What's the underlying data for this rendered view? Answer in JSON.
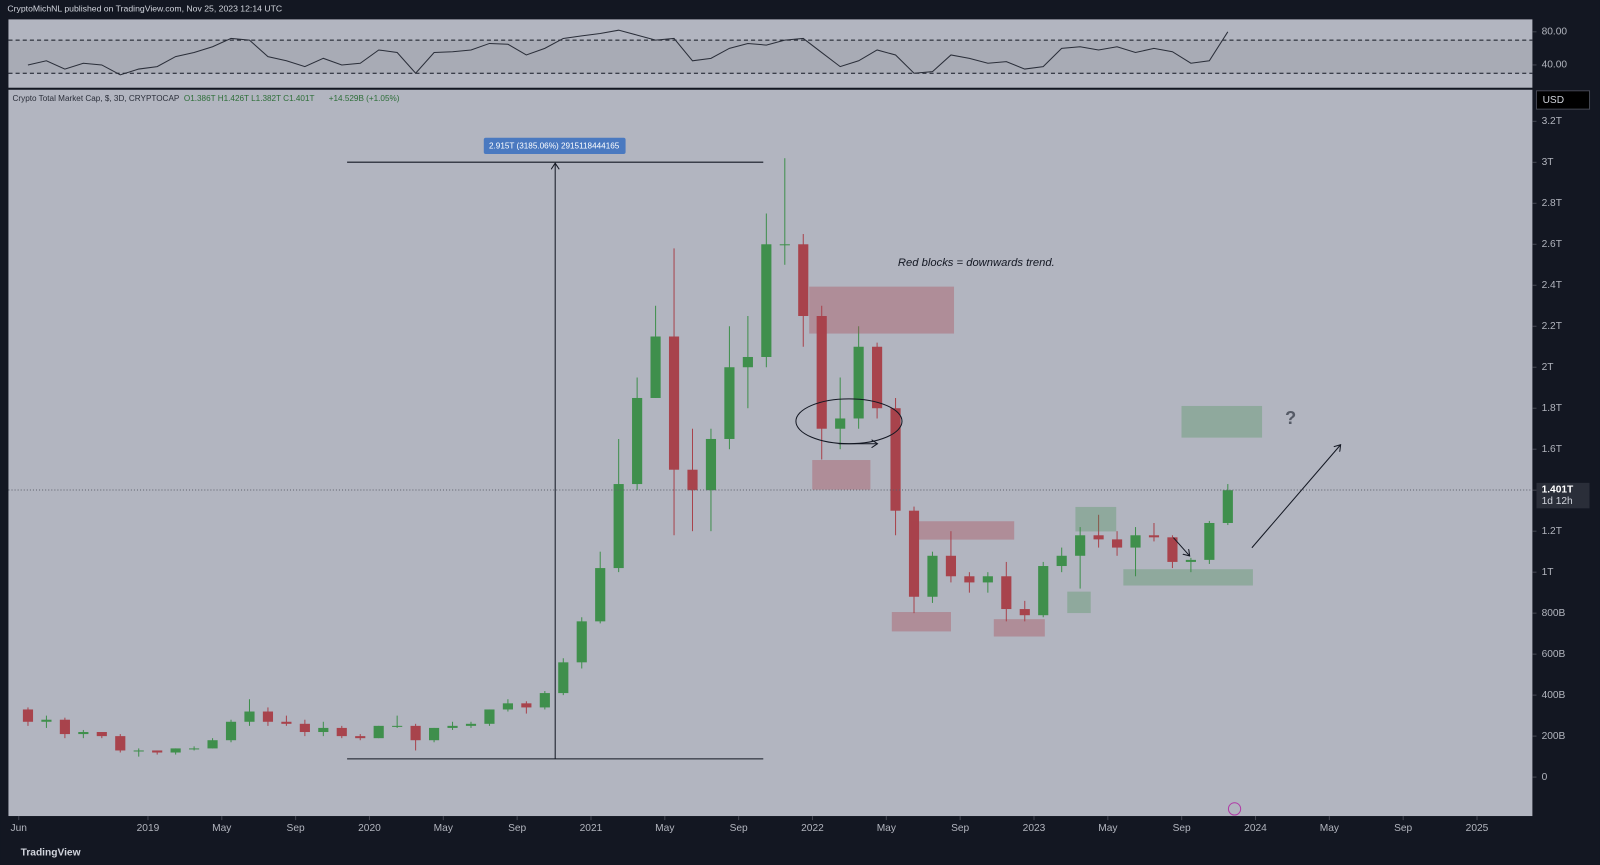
{
  "header": {
    "publisher": "CryptoMichNL published on TradingView.com, Nov 25, 2023 12:14 UTC",
    "footer": "TradingView",
    "currency": "USD",
    "measure": "2.915T (3185.06%) 2915118444165",
    "annotation": "Red blocks = downwards trend.",
    "question": "?",
    "countdown": "1d 12h"
  },
  "chart_data": [
    {
      "type": "candlestick",
      "title": "Crypto Total Market Cap, $, 3D, CRYPTOCAP",
      "legend_ohlc": "O1.386T H1.426T L1.382T C1.401T",
      "change": "+14.529B (+1.05%)",
      "up_color": "#3f8f4c",
      "down_color": "#a8434c",
      "x": [
        "2018-06",
        "2018-07",
        "2018-08",
        "2018-09",
        "2018-10",
        "2018-11",
        "2018-12",
        "2019-01",
        "2019-02",
        "2019-03",
        "2019-04",
        "2019-05",
        "2019-06",
        "2019-07",
        "2019-08",
        "2019-09",
        "2019-10",
        "2019-11",
        "2019-12",
        "2020-01",
        "2020-02",
        "2020-03",
        "2020-04",
        "2020-05",
        "2020-06",
        "2020-07",
        "2020-08",
        "2020-09",
        "2020-10",
        "2020-11",
        "2020-12",
        "2021-01",
        "2021-02",
        "2021-03",
        "2021-04",
        "2021-05",
        "2021-06",
        "2021-07",
        "2021-08",
        "2021-09",
        "2021-10",
        "2021-11",
        "2021-12",
        "2022-01",
        "2022-02",
        "2022-03",
        "2022-04",
        "2022-05",
        "2022-06",
        "2022-07",
        "2022-08",
        "2022-09",
        "2022-10",
        "2022-11",
        "2022-12",
        "2023-01",
        "2023-02",
        "2023-03",
        "2023-04",
        "2023-05",
        "2023-06",
        "2023-07",
        "2023-08",
        "2023-09",
        "2023-10",
        "2023-11"
      ],
      "open": [
        0.33,
        0.27,
        0.28,
        0.21,
        0.22,
        0.2,
        0.13,
        0.13,
        0.12,
        0.14,
        0.14,
        0.18,
        0.27,
        0.32,
        0.27,
        0.26,
        0.22,
        0.24,
        0.2,
        0.19,
        0.25,
        0.25,
        0.18,
        0.24,
        0.25,
        0.26,
        0.33,
        0.36,
        0.34,
        0.41,
        0.56,
        0.76,
        1.02,
        1.43,
        1.85,
        2.15,
        1.5,
        1.4,
        1.65,
        2.0,
        2.05,
        2.6,
        2.6,
        2.25,
        1.7,
        1.75,
        2.1,
        1.8,
        1.3,
        0.88,
        1.08,
        0.98,
        0.95,
        0.98,
        0.82,
        0.79,
        1.03,
        1.08,
        1.18,
        1.16,
        1.12,
        1.18,
        1.17,
        1.05,
        1.06,
        1.24
      ],
      "high": [
        0.34,
        0.3,
        0.29,
        0.23,
        0.22,
        0.21,
        0.14,
        0.13,
        0.14,
        0.15,
        0.19,
        0.28,
        0.38,
        0.34,
        0.3,
        0.28,
        0.27,
        0.25,
        0.21,
        0.25,
        0.3,
        0.26,
        0.24,
        0.27,
        0.27,
        0.33,
        0.38,
        0.37,
        0.42,
        0.58,
        0.78,
        1.1,
        1.65,
        1.95,
        2.3,
        2.58,
        1.7,
        1.7,
        2.2,
        2.25,
        2.75,
        3.02,
        2.65,
        2.3,
        1.95,
        2.2,
        2.12,
        1.85,
        1.32,
        1.1,
        1.2,
        1.0,
        1.0,
        1.05,
        0.86,
        1.05,
        1.12,
        1.22,
        1.28,
        1.2,
        1.22,
        1.24,
        1.18,
        1.07,
        1.25,
        1.43
      ],
      "low": [
        0.25,
        0.24,
        0.19,
        0.19,
        0.19,
        0.12,
        0.1,
        0.11,
        0.11,
        0.13,
        0.14,
        0.17,
        0.25,
        0.25,
        0.25,
        0.2,
        0.2,
        0.19,
        0.18,
        0.19,
        0.24,
        0.13,
        0.17,
        0.23,
        0.24,
        0.25,
        0.32,
        0.31,
        0.33,
        0.4,
        0.53,
        0.75,
        1.0,
        1.4,
        1.85,
        1.18,
        1.2,
        1.2,
        1.6,
        1.8,
        2.0,
        2.5,
        2.1,
        1.55,
        1.6,
        1.7,
        1.75,
        1.18,
        0.8,
        0.85,
        0.95,
        0.9,
        0.9,
        0.76,
        0.76,
        0.78,
        1.0,
        0.92,
        1.12,
        1.08,
        0.98,
        1.15,
        1.02,
        1.0,
        1.04,
        1.23
      ],
      "close": [
        0.27,
        0.28,
        0.21,
        0.22,
        0.2,
        0.13,
        0.13,
        0.12,
        0.14,
        0.14,
        0.18,
        0.27,
        0.32,
        0.27,
        0.26,
        0.22,
        0.24,
        0.2,
        0.19,
        0.25,
        0.25,
        0.18,
        0.24,
        0.25,
        0.26,
        0.33,
        0.36,
        0.34,
        0.41,
        0.56,
        0.76,
        1.02,
        1.43,
        1.85,
        2.15,
        1.5,
        1.4,
        1.65,
        2.0,
        2.05,
        2.6,
        2.6,
        2.25,
        1.7,
        1.75,
        2.1,
        1.8,
        1.3,
        0.88,
        1.08,
        0.98,
        0.95,
        0.98,
        0.82,
        0.79,
        1.03,
        1.08,
        1.18,
        1.16,
        1.12,
        1.18,
        1.17,
        1.05,
        1.06,
        1.24,
        1.4
      ],
      "last_price": {
        "value": 1.401,
        "label": "1.401T"
      },
      "xlim": [
        "2018-05",
        "2025-04"
      ],
      "xticks": [
        {
          "value": "2018-06",
          "label": "Jun"
        },
        {
          "value": "2019-01",
          "label": "2019"
        },
        {
          "value": "2019-05",
          "label": "May"
        },
        {
          "value": "2019-09",
          "label": "Sep"
        },
        {
          "value": "2020-01",
          "label": "2020"
        },
        {
          "value": "2020-05",
          "label": "May"
        },
        {
          "value": "2020-09",
          "label": "Sep"
        },
        {
          "value": "2021-01",
          "label": "2021"
        },
        {
          "value": "2021-05",
          "label": "May"
        },
        {
          "value": "2021-09",
          "label": "Sep"
        },
        {
          "value": "2022-01",
          "label": "2022"
        },
        {
          "value": "2022-05",
          "label": "May"
        },
        {
          "value": "2022-09",
          "label": "Sep"
        },
        {
          "value": "2023-01",
          "label": "2023"
        },
        {
          "value": "2023-05",
          "label": "May"
        },
        {
          "value": "2023-09",
          "label": "Sep"
        },
        {
          "value": "2024-01",
          "label": "2024"
        },
        {
          "value": "2024-05",
          "label": "May"
        },
        {
          "value": "2024-09",
          "label": "Sep"
        },
        {
          "value": "2025-01",
          "label": "2025"
        }
      ],
      "ylim": [
        -0.19,
        3.354
      ],
      "yticks": [
        0,
        {
          "value": 0.2,
          "label": "200B"
        },
        {
          "value": 0.4,
          "label": "400B"
        },
        {
          "value": 0.6,
          "label": "600B"
        },
        {
          "value": 0.8,
          "label": "800B"
        },
        {
          "value": 1,
          "label": "1T"
        },
        {
          "value": 1.2,
          "label": "1.2T"
        },
        {
          "value": 1.4,
          "label": "1.4T"
        },
        {
          "value": 1.6,
          "label": "1.6T"
        },
        {
          "value": 1.8,
          "label": "1.8T"
        },
        {
          "value": 2,
          "label": "2T"
        },
        {
          "value": 2.2,
          "label": "2.2T"
        },
        {
          "value": 2.4,
          "label": "2.4T"
        },
        {
          "value": 2.6,
          "label": "2.6T"
        },
        {
          "value": 2.8,
          "label": "2.8T"
        },
        {
          "value": 3,
          "label": "3T"
        },
        {
          "value": 3.2,
          "label": "3.2T"
        }
      ],
      "grid": false
    },
    {
      "type": "line",
      "color": "#2a2e39",
      "x": [
        "2018-06",
        "2018-07",
        "2018-08",
        "2018-09",
        "2018-10",
        "2018-11",
        "2018-12",
        "2019-01",
        "2019-02",
        "2019-03",
        "2019-04",
        "2019-05",
        "2019-06",
        "2019-07",
        "2019-08",
        "2019-09",
        "2019-10",
        "2019-11",
        "2019-12",
        "2020-01",
        "2020-02",
        "2020-03",
        "2020-04",
        "2020-05",
        "2020-06",
        "2020-07",
        "2020-08",
        "2020-09",
        "2020-10",
        "2020-11",
        "2020-12",
        "2021-01",
        "2021-02",
        "2021-03",
        "2021-04",
        "2021-05",
        "2021-06",
        "2021-07",
        "2021-08",
        "2021-09",
        "2021-10",
        "2021-11",
        "2021-12",
        "2022-01",
        "2022-02",
        "2022-03",
        "2022-04",
        "2022-05",
        "2022-06",
        "2022-07",
        "2022-08",
        "2022-09",
        "2022-10",
        "2022-11",
        "2022-12",
        "2023-01",
        "2023-02",
        "2023-03",
        "2023-04",
        "2023-05",
        "2023-06",
        "2023-07",
        "2023-08",
        "2023-09",
        "2023-10",
        "2023-11"
      ],
      "values": [
        40,
        45,
        35,
        42,
        40,
        28,
        35,
        38,
        50,
        55,
        62,
        72,
        70,
        50,
        45,
        38,
        48,
        40,
        42,
        58,
        55,
        30,
        55,
        56,
        58,
        66,
        65,
        52,
        60,
        72,
        75,
        78,
        82,
        76,
        70,
        72,
        45,
        48,
        60,
        66,
        64,
        70,
        72,
        55,
        38,
        45,
        58,
        52,
        30,
        32,
        52,
        48,
        42,
        44,
        35,
        38,
        60,
        62,
        58,
        62,
        55,
        60,
        56,
        42,
        45,
        80
      ],
      "bands": [
        70,
        30
      ],
      "xlim": [
        "2018-05",
        "2025-04"
      ],
      "ylim": [
        12.5,
        95
      ],
      "yticks": [
        {
          "value": 80,
          "label": "80.00"
        },
        {
          "value": 40,
          "label": "40.00"
        }
      ]
    }
  ]
}
